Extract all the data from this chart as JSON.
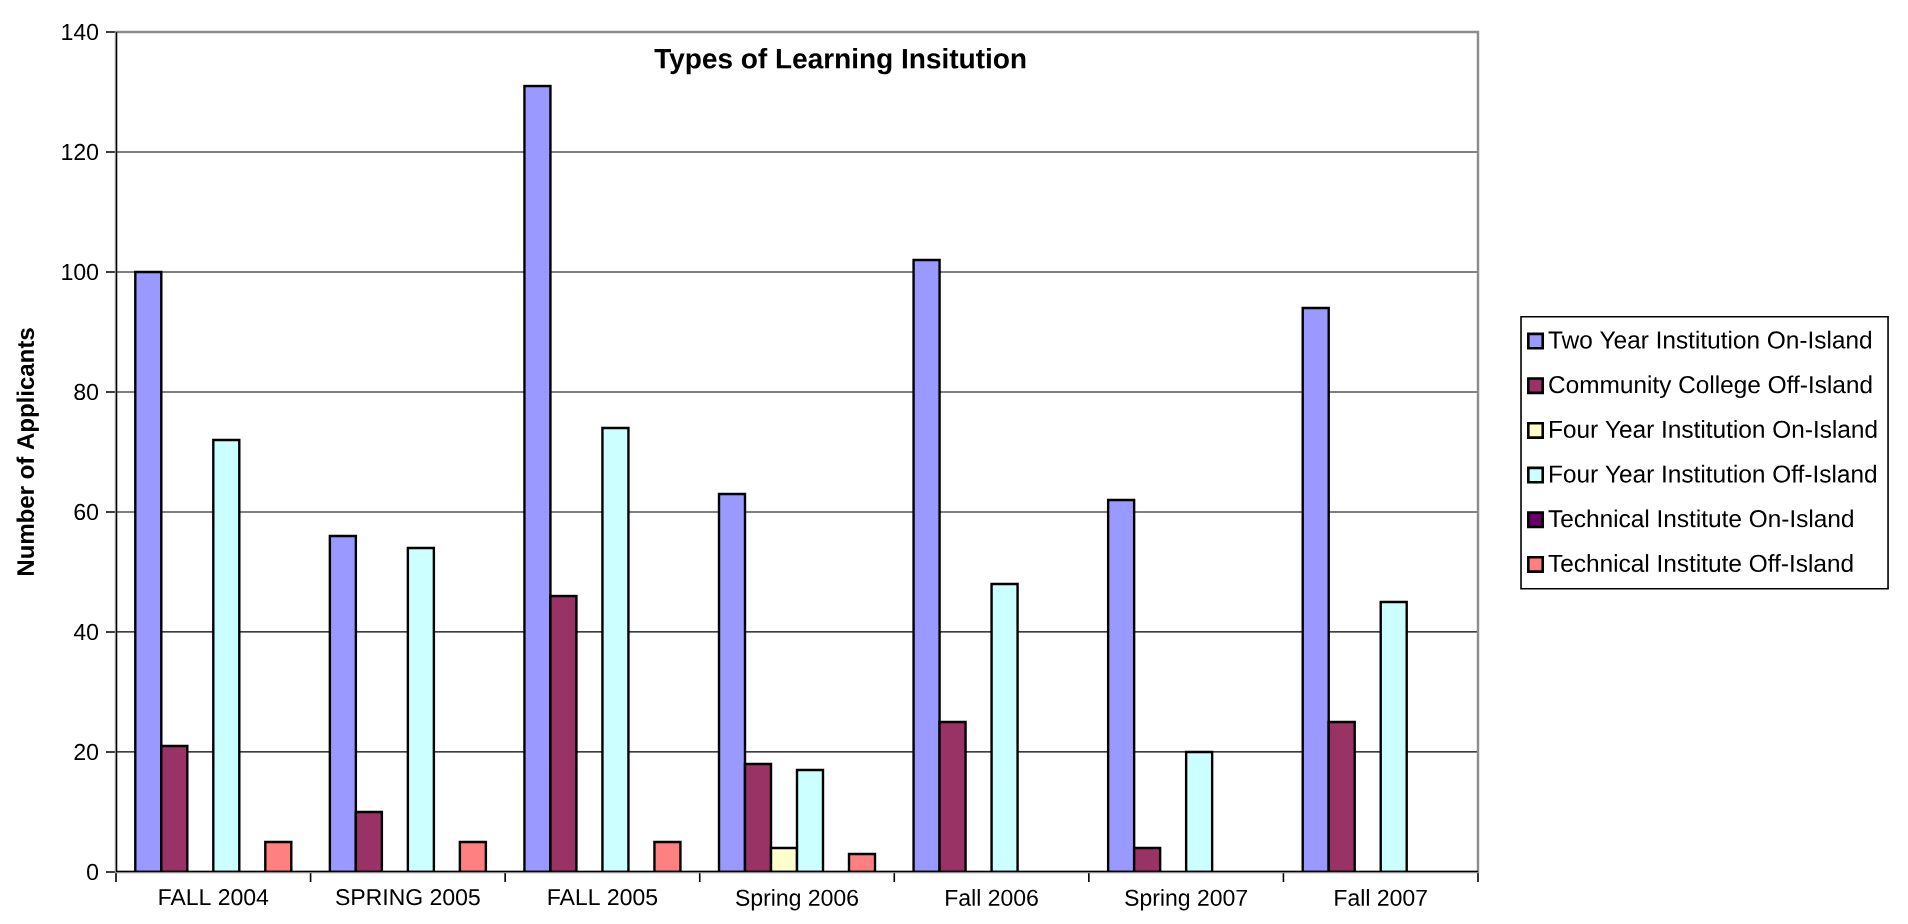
{
  "chart_data": {
    "type": "bar",
    "title": "Types of Learning Insitution",
    "ylabel": "Number of Applicants",
    "categories": [
      "FALL 2004",
      "SPRING 2005",
      "FALL 2005",
      "Spring 2006",
      "Fall 2006",
      "Spring 2007",
      "Fall 2007"
    ],
    "series": [
      {
        "name": "Two Year Institution On-Island",
        "color": "#9999ff",
        "values": [
          100,
          56,
          131,
          63,
          102,
          62,
          94
        ]
      },
      {
        "name": "Community College Off-Island",
        "color": "#993366",
        "values": [
          21,
          10,
          46,
          18,
          25,
          4,
          25
        ]
      },
      {
        "name": "Four Year Institution On-Island",
        "color": "#ffffcc",
        "values": [
          0,
          0,
          0,
          4,
          0,
          0,
          0
        ]
      },
      {
        "name": "Four Year Institution Off-Island",
        "color": "#ccffff",
        "values": [
          72,
          54,
          74,
          17,
          48,
          20,
          45
        ]
      },
      {
        "name": "Technical Institute On-Island",
        "color": "#660066",
        "values": [
          0,
          0,
          0,
          0,
          0,
          0,
          0
        ]
      },
      {
        "name": "Technical Institute Off-Island",
        "color": "#ff8080",
        "values": [
          5,
          5,
          5,
          3,
          0,
          0,
          0
        ]
      }
    ],
    "ylim": [
      0,
      140
    ],
    "yticks": [
      0,
      20,
      40,
      60,
      80,
      100,
      120,
      140
    ],
    "grid": "y",
    "legend": "right"
  }
}
